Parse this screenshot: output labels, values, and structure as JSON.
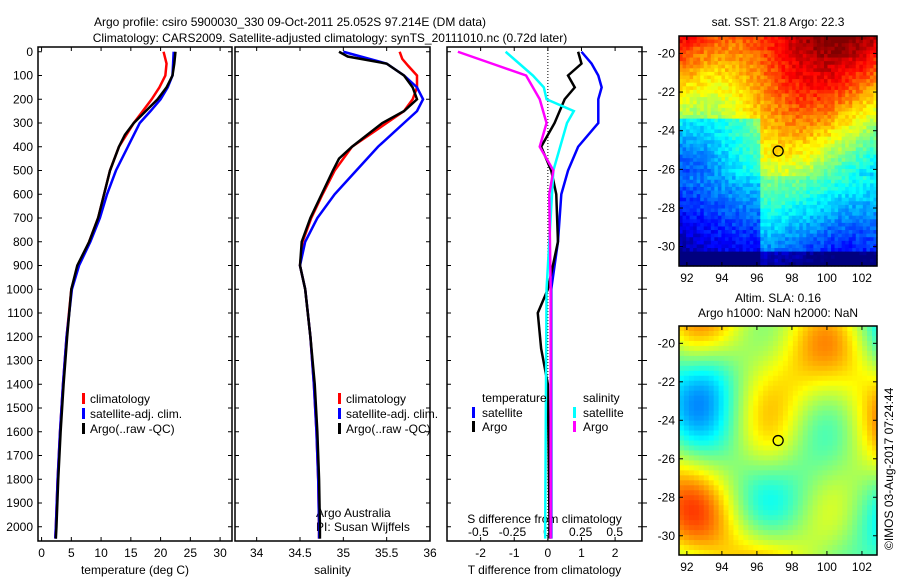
{
  "title_line1": "Argo profile: csiro 5900030_330 09-Oct-2011 25.052S 97.214E (DM data)",
  "title_line2": "Climatology: CARS2009. Satellite-adjusted climatology: synTS_20111010.nc (0.72d later)",
  "credit": "Argo Australia",
  "pi": "PI: Susan Wijffels",
  "copyright": "©IMOS 03-Aug-2017 07:24:44",
  "colors": {
    "clim": "#ff0000",
    "sat": "#0000ff",
    "argo": "#000000",
    "sal_sat": "#00ffff",
    "sal_argo": "#ff00ff"
  },
  "chart_data": [
    {
      "type": "line",
      "id": "temperature",
      "xlabel": "temperature (deg C)",
      "ylabel": "",
      "xlim": [
        -0.6,
        32
      ],
      "ylim": [
        2060,
        -20
      ],
      "xticks": [
        0,
        5,
        10,
        15,
        20,
        25,
        30
      ],
      "yticks": [
        0,
        100,
        200,
        300,
        400,
        500,
        600,
        700,
        800,
        900,
        1000,
        1100,
        1200,
        1300,
        1400,
        1500,
        1600,
        1700,
        1800,
        1900,
        2000
      ],
      "legend": [
        "climatology",
        "satellite-adj. clim.",
        "Argo(..raw -QC)"
      ],
      "series": [
        {
          "name": "climatology",
          "color": "#ff0000",
          "depth": [
            0,
            50,
            100,
            150,
            200,
            250,
            300,
            400,
            500,
            600,
            700,
            800,
            900,
            1000,
            1200,
            1400,
            1600,
            1800,
            2000,
            2050
          ],
          "values": [
            20.5,
            21,
            20.8,
            19.8,
            18.5,
            17,
            15.5,
            13,
            11.5,
            10.5,
            9.5,
            8,
            6.2,
            5,
            4.2,
            3.6,
            3.1,
            2.7,
            2.4,
            2.3
          ]
        },
        {
          "name": "satellite-adj. clim.",
          "color": "#0000ff",
          "depth": [
            0,
            50,
            100,
            150,
            200,
            250,
            300,
            400,
            500,
            600,
            700,
            800,
            900,
            1000,
            1200,
            1400,
            1600,
            1800,
            2000,
            2050
          ],
          "values": [
            22.2,
            22.1,
            22,
            21.2,
            20,
            18.3,
            16.5,
            14.5,
            12.5,
            11,
            9.8,
            8.2,
            6.3,
            5.1,
            4.2,
            3.6,
            3.1,
            2.7,
            2.4,
            2.3
          ]
        },
        {
          "name": "Argo(..raw -QC)",
          "color": "#000000",
          "depth": [
            0,
            50,
            100,
            150,
            200,
            250,
            300,
            350,
            400,
            500,
            600,
            700,
            800,
            900,
            1000,
            1200,
            1400,
            1600,
            1800,
            2000,
            2050
          ],
          "values": [
            22.5,
            22.3,
            22,
            21,
            19.5,
            17.5,
            15.5,
            14,
            13,
            11.5,
            10.5,
            9.5,
            8,
            6,
            5,
            4.3,
            3.7,
            3.2,
            2.8,
            2.5,
            2.4
          ]
        }
      ]
    },
    {
      "type": "line",
      "id": "salinity",
      "xlabel": "salinity",
      "xlim": [
        33.75,
        36
      ],
      "ylim": [
        2060,
        -20
      ],
      "xticks": [
        34,
        34.5,
        35,
        35.5,
        36
      ],
      "legend": [
        "climatology",
        "satellite-adj. clim.",
        "Argo(..raw -QC)"
      ],
      "series": [
        {
          "name": "climatology",
          "color": "#ff0000",
          "depth": [
            0,
            30,
            60,
            100,
            150,
            200,
            250,
            300,
            400,
            500,
            600,
            700,
            800,
            900,
            1000,
            1200,
            1400,
            1600,
            1800,
            2000,
            2050
          ],
          "values": [
            35.65,
            35.68,
            35.75,
            35.85,
            35.85,
            35.8,
            35.7,
            35.5,
            35.1,
            34.9,
            34.76,
            34.63,
            34.53,
            34.5,
            34.56,
            34.62,
            34.66,
            34.69,
            34.71,
            34.72,
            34.72
          ]
        },
        {
          "name": "satellite-adj. clim.",
          "color": "#0000ff",
          "depth": [
            0,
            20,
            50,
            100,
            150,
            200,
            250,
            300,
            400,
            500,
            600,
            700,
            800,
            900,
            1000,
            1200,
            1400,
            1600,
            1800,
            2000,
            2050
          ],
          "values": [
            35.0,
            35.2,
            35.5,
            35.7,
            35.85,
            35.92,
            35.85,
            35.7,
            35.4,
            35.15,
            34.9,
            34.7,
            34.56,
            34.5,
            34.56,
            34.62,
            34.66,
            34.69,
            34.71,
            34.72,
            34.72
          ]
        },
        {
          "name": "Argo(..raw -QC)",
          "color": "#000000",
          "depth": [
            0,
            20,
            50,
            100,
            150,
            200,
            250,
            300,
            400,
            450,
            500,
            600,
            700,
            800,
            900,
            1000,
            1200,
            1400,
            1600,
            1800,
            2000,
            2050
          ],
          "values": [
            34.95,
            35.05,
            35.5,
            35.7,
            35.8,
            35.85,
            35.7,
            35.45,
            35.1,
            34.95,
            34.88,
            34.75,
            34.62,
            34.52,
            34.5,
            34.56,
            34.62,
            34.67,
            34.7,
            34.72,
            34.73,
            34.73
          ]
        }
      ]
    },
    {
      "type": "line",
      "id": "differences",
      "xlabel": "T difference from climatology",
      "x2label": "S difference from climatology",
      "xlim": [
        -3,
        2.8
      ],
      "x2lim": [
        -0.73,
        0.7
      ],
      "ylim": [
        2060,
        -20
      ],
      "xticks": [
        -2,
        -1,
        0,
        1,
        2
      ],
      "x2ticks": [
        -0.5,
        -0.25,
        0,
        0.25,
        0.5
      ],
      "x2ticklabels": [
        "-0.5",
        "-0.25",
        "0",
        "0.25",
        "0.5"
      ],
      "legend_groups": [
        {
          "title": "temperature",
          "items": [
            "satellite",
            "Argo"
          ]
        },
        {
          "title": "salinity",
          "items": [
            "satellite",
            "Argo"
          ]
        }
      ],
      "series": [
        {
          "name": "temperature satellite",
          "axis": "T",
          "color": "#0000ff",
          "depth": [
            0,
            50,
            100,
            150,
            200,
            300,
            400,
            500,
            600,
            800,
            1000,
            1200,
            1600,
            2000,
            2050
          ],
          "values": [
            1.0,
            1.3,
            1.5,
            1.6,
            1.5,
            1.5,
            0.9,
            0.6,
            0.4,
            0.3,
            0.1,
            0.1,
            0.1,
            0.1,
            0.1
          ]
        },
        {
          "name": "temperature Argo",
          "axis": "T",
          "color": "#000000",
          "depth": [
            0,
            50,
            100,
            150,
            200,
            300,
            400,
            500,
            600,
            800,
            1000,
            1100,
            1250,
            1400,
            2000,
            2050
          ],
          "values": [
            0.9,
            1.0,
            0.6,
            0.8,
            0.5,
            0.2,
            -0.2,
            0.1,
            0.25,
            0.3,
            0,
            -0.3,
            -0.2,
            0,
            0.05,
            0.05
          ]
        },
        {
          "name": "salinity satellite",
          "axis": "S",
          "color": "#00ffff",
          "depth": [
            0,
            50,
            100,
            150,
            200,
            250,
            300,
            400,
            500,
            700,
            1000,
            2000,
            2050
          ],
          "values": [
            -0.3,
            -0.2,
            -0.1,
            -0.02,
            0,
            0.2,
            0.15,
            0.1,
            0.05,
            0.03,
            0,
            -0.01,
            -0.01
          ]
        },
        {
          "name": "salinity Argo",
          "axis": "S",
          "color": "#ff00ff",
          "depth": [
            0,
            50,
            100,
            200,
            300,
            400,
            500,
            600,
            1000,
            2000,
            2050
          ],
          "values": [
            -0.65,
            -0.4,
            -0.15,
            -0.05,
            0,
            -0.05,
            0.05,
            0.02,
            0.03,
            0.03,
            0.03
          ]
        }
      ]
    },
    {
      "type": "heatmap",
      "id": "sst-map",
      "title": "sat. SST: 21.8 Argo: 22.3",
      "xlim": [
        91.55,
        102.86
      ],
      "ylim": [
        -31.0,
        -19.1
      ],
      "xticks": [
        92,
        94,
        96,
        98,
        100,
        102
      ],
      "yticks": [
        -20,
        -22,
        -24,
        -26,
        -28,
        -30
      ],
      "marker": {
        "lon": 97.214,
        "lat": -25.052
      }
    },
    {
      "type": "heatmap",
      "id": "sla-map",
      "title": "Altim. SLA: 0.16",
      "subtitle": "Argo h1000: NaN h2000: NaN",
      "xlim": [
        91.55,
        102.86
      ],
      "ylim": [
        -31.0,
        -19.1
      ],
      "xticks": [
        92,
        94,
        96,
        98,
        100,
        102
      ],
      "yticks": [
        -20,
        -22,
        -24,
        -26,
        -28,
        -30
      ],
      "marker": {
        "lon": 97.214,
        "lat": -25.052
      }
    }
  ]
}
